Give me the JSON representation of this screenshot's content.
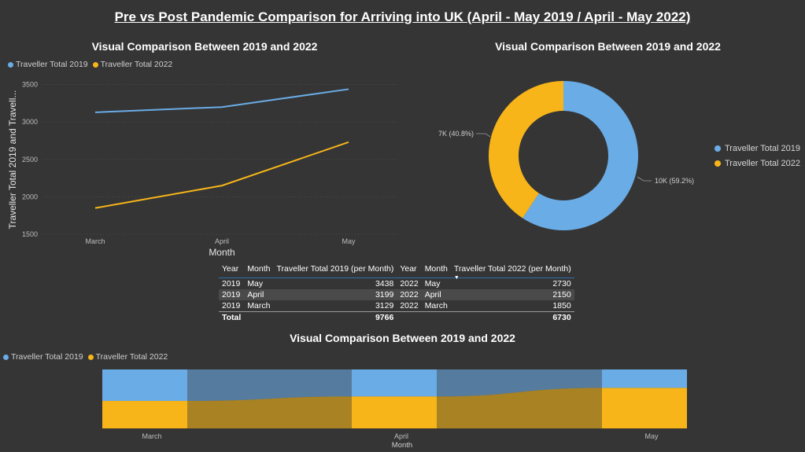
{
  "page_title": "Pre vs Post Pandemic Comparison for Arriving into UK (April - May 2019 / April - May 2022)",
  "colors": {
    "series_2019": "#6aace6",
    "series_2022": "#f7b519",
    "background": "#353535"
  },
  "line_chart": {
    "title": "Visual Comparison Between 2019 and 2022",
    "legend": [
      "Traveller Total 2019",
      "Traveller Total 2022"
    ],
    "y_axis_title": "Traveller Total 2019 and Travell...",
    "x_axis_title": "Month",
    "y_ticks": [
      "3500",
      "3000",
      "2500",
      "2000",
      "1500"
    ],
    "x_ticks": [
      "March",
      "April",
      "May"
    ]
  },
  "donut_chart": {
    "title": "Visual Comparison Between 2019 and 2022",
    "legend": [
      "Traveller Total 2019",
      "Traveller Total 2022"
    ],
    "label_2019": "10K (59.2%)",
    "label_2022": "7K (40.8%)"
  },
  "table": {
    "headers": [
      "Year",
      "Month",
      "Traveller Total 2019 (per Month)",
      "Year",
      "Month",
      "Traveller Total 2022 (per Month)"
    ],
    "sort_indicator": "▼",
    "rows": [
      [
        "2019",
        "May",
        "3438",
        "2022",
        "May",
        "2730"
      ],
      [
        "2019",
        "April",
        "3199",
        "2022",
        "April",
        "2150"
      ],
      [
        "2019",
        "March",
        "3129",
        "2022",
        "March",
        "1850"
      ]
    ],
    "total": {
      "label": "Total",
      "total_2019": "9766",
      "total_2022": "6730"
    }
  },
  "ribbon_chart": {
    "title": "Visual Comparison Between 2019 and 2022",
    "legend": [
      "Traveller Total 2019",
      "Traveller Total 2022"
    ],
    "x_ticks": [
      "March",
      "April",
      "May"
    ],
    "x_axis_title": "Month"
  },
  "chart_data": [
    {
      "type": "line",
      "title": "Visual Comparison Between 2019 and 2022",
      "categories": [
        "March",
        "April",
        "May"
      ],
      "series": [
        {
          "name": "Traveller Total 2019",
          "values": [
            3129,
            3199,
            3438
          ]
        },
        {
          "name": "Traveller Total 2022",
          "values": [
            1850,
            2150,
            2730
          ]
        }
      ],
      "xlabel": "Month",
      "ylabel": "Traveller Total 2019 and Travell...",
      "ylim": [
        1500,
        3600
      ],
      "legend": "top-left",
      "grid": true
    },
    {
      "type": "pie",
      "title": "Visual Comparison Between 2019 and 2022",
      "labels": [
        "Traveller Total 2019",
        "Traveller Total 2022"
      ],
      "values": [
        9766,
        6730
      ],
      "percent_labels": [
        "10K (59.2%)",
        "7K (40.8%)"
      ],
      "donut": true,
      "legend": "right"
    },
    {
      "type": "area",
      "subtype": "ribbon",
      "title": "Visual Comparison Between 2019 and 2022",
      "categories": [
        "March",
        "April",
        "May"
      ],
      "series": [
        {
          "name": "Traveller Total 2019",
          "values": [
            3129,
            3199,
            3438
          ]
        },
        {
          "name": "Traveller Total 2022",
          "values": [
            1850,
            2150,
            2730
          ]
        }
      ],
      "xlabel": "Month",
      "legend": "top-left"
    }
  ]
}
